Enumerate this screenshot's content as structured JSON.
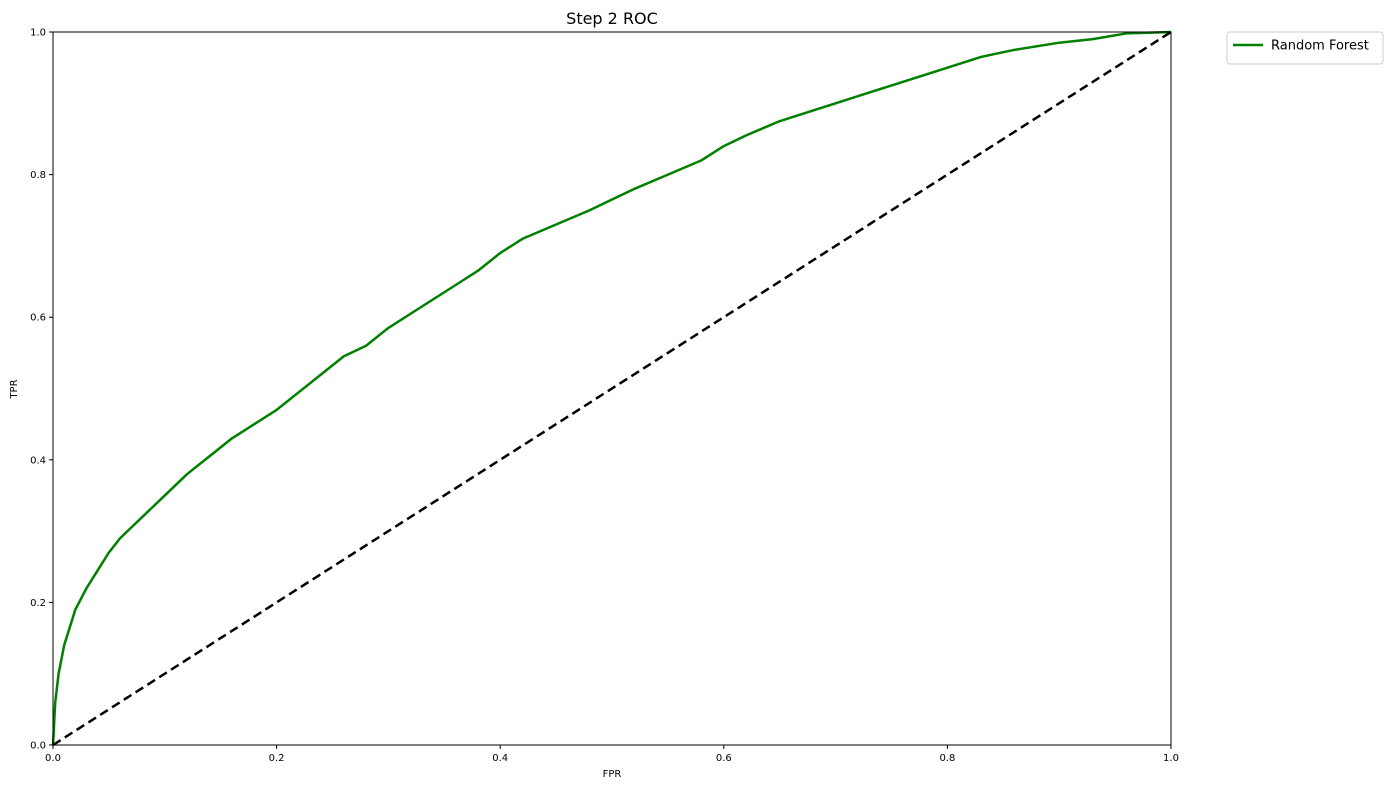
{
  "chart_data": {
    "type": "line",
    "title": "Step 2 ROC",
    "xlabel": "FPR",
    "ylabel": "TPR",
    "xlim": [
      0,
      1
    ],
    "ylim": [
      0,
      1
    ],
    "x_ticks": [
      "0.0",
      "0.2",
      "0.4",
      "0.6",
      "0.8",
      "1.0"
    ],
    "y_ticks": [
      "0.0",
      "0.2",
      "0.4",
      "0.6",
      "0.8",
      "1.0"
    ],
    "grid": false,
    "legend": {
      "position": "outside-top-right",
      "entries": [
        "Random Forest"
      ]
    },
    "series": [
      {
        "name": "Random Forest",
        "color": "#008000",
        "style": "solid",
        "x": [
          0.0,
          0.002,
          0.005,
          0.01,
          0.015,
          0.02,
          0.03,
          0.04,
          0.05,
          0.06,
          0.07,
          0.08,
          0.09,
          0.1,
          0.12,
          0.14,
          0.16,
          0.18,
          0.2,
          0.22,
          0.24,
          0.26,
          0.28,
          0.3,
          0.32,
          0.34,
          0.36,
          0.38,
          0.4,
          0.42,
          0.45,
          0.48,
          0.5,
          0.52,
          0.55,
          0.58,
          0.6,
          0.62,
          0.65,
          0.68,
          0.7,
          0.73,
          0.76,
          0.8,
          0.83,
          0.86,
          0.9,
          0.93,
          0.96,
          1.0
        ],
        "y": [
          0.0,
          0.06,
          0.1,
          0.14,
          0.165,
          0.19,
          0.22,
          0.245,
          0.27,
          0.29,
          0.305,
          0.32,
          0.335,
          0.35,
          0.38,
          0.405,
          0.43,
          0.45,
          0.47,
          0.495,
          0.52,
          0.545,
          0.56,
          0.585,
          0.605,
          0.625,
          0.645,
          0.665,
          0.69,
          0.71,
          0.73,
          0.75,
          0.765,
          0.78,
          0.8,
          0.82,
          0.84,
          0.855,
          0.875,
          0.89,
          0.9,
          0.915,
          0.93,
          0.95,
          0.965,
          0.975,
          0.985,
          0.99,
          0.998,
          1.0
        ]
      },
      {
        "name": "",
        "color": "#000000",
        "style": "dashed",
        "x": [
          0,
          1
        ],
        "y": [
          0,
          1
        ]
      }
    ]
  }
}
